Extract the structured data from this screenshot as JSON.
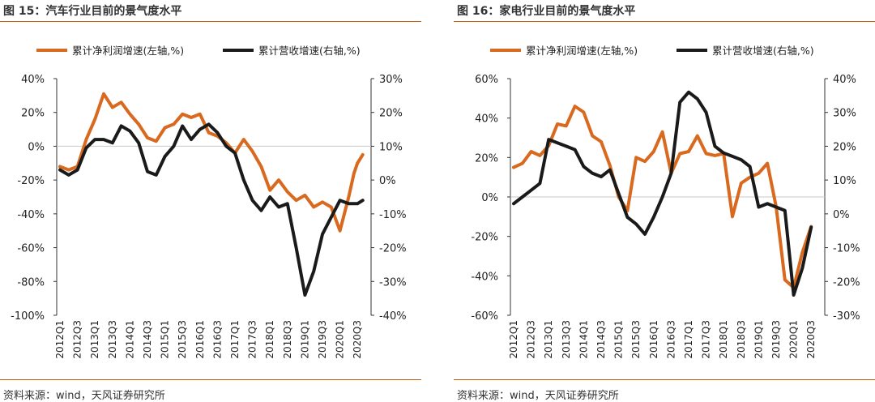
{
  "colors": {
    "net_profit": "#d8691e",
    "revenue": "#1a1a1a",
    "accent": "#c55a11"
  },
  "panels": [
    {
      "title": "图 15：汽车行业目前的景气度水平",
      "source": "资料来源：wind，天风证券研究所"
    },
    {
      "title": "图 16：家电行业目前的景气度水平",
      "source": "资料来源：wind，天风证券研究所"
    }
  ],
  "chart_data": [
    {
      "type": "line",
      "legend": [
        "累计净利润增速(左轴,%)",
        "累计营收增速(右轴,%)"
      ],
      "legend_position": "top",
      "x_labels": [
        "2012Q1",
        "2012Q3",
        "2013Q1",
        "2013Q3",
        "2014Q1",
        "2014Q3",
        "2015Q1",
        "2015Q3",
        "2016Q1",
        "2016Q3",
        "2017Q1",
        "2017Q3",
        "2018Q1",
        "2018Q3",
        "2019Q1",
        "2019Q3",
        "2020Q1",
        "2020Q3"
      ],
      "y_left": {
        "min": -100,
        "max": 40,
        "ticks": [
          "40%",
          "20%",
          "0%",
          "-20%",
          "-40%",
          "-60%",
          "-80%",
          "-100%"
        ]
      },
      "y_right": {
        "min": -40,
        "max": 30,
        "ticks": [
          "30%",
          "20%",
          "10%",
          "0%",
          "-10%",
          "-20%",
          "-30%",
          "-40%"
        ]
      },
      "reference_line_left": 0,
      "series": [
        {
          "name": "累计净利润增速(左轴,%)",
          "axis": "left",
          "x": [
            0,
            0.5,
            1,
            1.5,
            2,
            2.5,
            3,
            3.5,
            4,
            4.5,
            5,
            5.5,
            6,
            6.5,
            7,
            7.5,
            8,
            8.5,
            9,
            9.5,
            10,
            10.5,
            11,
            11.5,
            12,
            12.5,
            13,
            13.5,
            14,
            14.5,
            15,
            15.5,
            16,
            16.5,
            16.8,
            17,
            17.3
          ],
          "values": [
            -12,
            -14,
            -12,
            4,
            16,
            31,
            23,
            26,
            19,
            13,
            5,
            3,
            11,
            13,
            19,
            17,
            19,
            8,
            6,
            2,
            -4,
            4,
            -3,
            -12,
            -26,
            -20,
            -27,
            -32,
            -29,
            -36,
            -33,
            -36,
            -50,
            -30,
            -16,
            -10,
            -5
          ]
        },
        {
          "name": "累计营收增速(右轴,%)",
          "axis": "right",
          "x": [
            0,
            0.5,
            1,
            1.5,
            2,
            2.5,
            3,
            3.5,
            4,
            4.5,
            5,
            5.5,
            6,
            6.5,
            7,
            7.5,
            8,
            8.5,
            9,
            9.5,
            10,
            10.5,
            11,
            11.5,
            12,
            12.5,
            13,
            13.5,
            14,
            14.5,
            15,
            15.5,
            16,
            16.5,
            17,
            17.3
          ],
          "values": [
            3,
            1.5,
            3,
            9.5,
            12,
            12,
            11,
            16,
            14.5,
            11,
            2.5,
            1.5,
            7,
            10,
            16,
            12,
            15,
            16.5,
            14,
            10,
            8,
            0,
            -6,
            -9,
            -5,
            -8,
            -7,
            -20,
            -34,
            -27,
            -16,
            -11,
            -6,
            -7,
            -7,
            -6
          ]
        }
      ]
    },
    {
      "type": "line",
      "legend": [
        "累计净利润增速(左轴,%)",
        "累计营收增速(右轴,%)"
      ],
      "legend_position": "top",
      "x_labels": [
        "2012Q1",
        "2012Q3",
        "2013Q1",
        "2013Q3",
        "2014Q1",
        "2014Q3",
        "2015Q1",
        "2015Q3",
        "2016Q1",
        "2016Q3",
        "2017Q1",
        "2017Q3",
        "2018Q1",
        "2018Q3",
        "2019Q1",
        "2019Q3",
        "2020Q1",
        "2020Q3"
      ],
      "y_left": {
        "min": -60,
        "max": 60,
        "ticks": [
          "60%",
          "40%",
          "20%",
          "0%",
          "-20%",
          "-40%",
          "-60%"
        ]
      },
      "y_right": {
        "min": -30,
        "max": 40,
        "ticks": [
          "40%",
          "30%",
          "20%",
          "10%",
          "0%",
          "-10%",
          "-20%",
          "-30%"
        ]
      },
      "reference_line_left": 0,
      "series": [
        {
          "name": "累计净利润增速(左轴,%)",
          "axis": "left",
          "x": [
            0,
            0.5,
            1,
            1.5,
            2,
            2.5,
            3,
            3.5,
            4,
            4.5,
            5,
            5.5,
            6,
            6.5,
            7,
            7.5,
            8,
            8.5,
            9,
            9.5,
            10,
            10.5,
            11,
            11.5,
            12,
            12.5,
            13,
            13.5,
            14,
            14.5,
            15,
            15.5,
            16,
            16.5,
            17
          ],
          "values": [
            15,
            17,
            23,
            21,
            26,
            37,
            36,
            46,
            43,
            31,
            28,
            16,
            0,
            -7,
            20,
            18,
            23,
            33,
            12,
            22,
            23,
            31,
            22,
            21,
            22,
            -10,
            7,
            10,
            12,
            17,
            -5,
            -42,
            -46,
            -28,
            -15
          ]
        },
        {
          "name": "累计营收增速(右轴,%)",
          "axis": "right",
          "x": [
            0,
            0.5,
            1,
            1.5,
            2,
            2.5,
            3,
            3.5,
            4,
            4.5,
            5,
            5.5,
            6,
            6.5,
            7,
            7.5,
            8,
            8.5,
            9,
            9.5,
            10,
            10.5,
            11,
            11.5,
            12,
            12.5,
            13,
            13.5,
            14,
            14.5,
            15,
            15.5,
            16,
            16.5,
            17
          ],
          "values": [
            3,
            5,
            7,
            9,
            22,
            21,
            20,
            19,
            14,
            12,
            11,
            13,
            6,
            -1,
            -3,
            -6,
            -1,
            5,
            12,
            33,
            36,
            34,
            30,
            20,
            18,
            17,
            16,
            14,
            2,
            3,
            2,
            1,
            -24,
            -16,
            -4
          ]
        }
      ]
    }
  ]
}
